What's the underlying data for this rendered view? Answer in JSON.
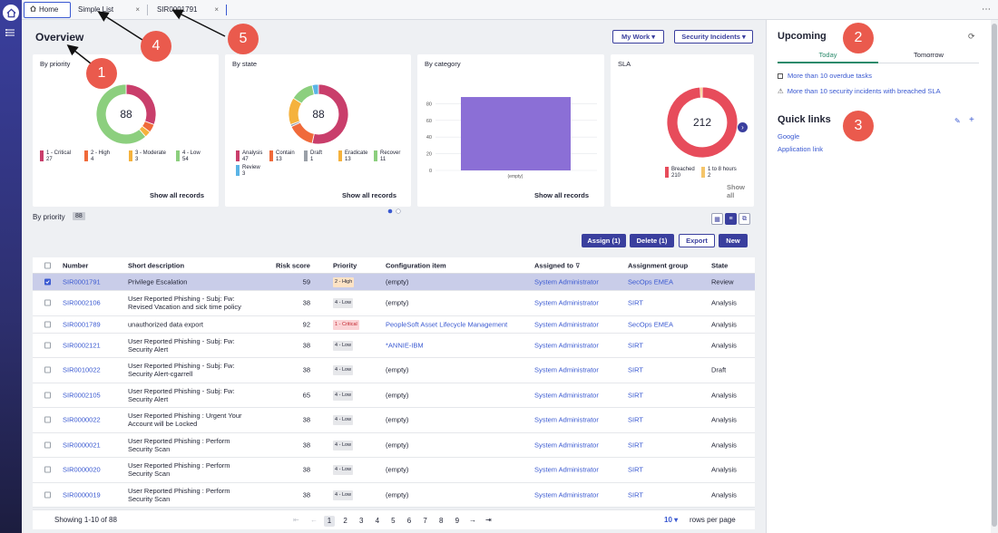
{
  "tabs": [
    {
      "label": "Home",
      "active": true
    },
    {
      "label": "Simple List",
      "close": "×"
    },
    {
      "label": "SIR0001791",
      "close": "×"
    }
  ],
  "page_title": "Overview",
  "buttons": {
    "my_work": "My Work ▾",
    "security_incidents": "Security Incidents ▾"
  },
  "cards": [
    {
      "title": "By priority",
      "center": "88",
      "show_all": "Show all records",
      "legend": [
        {
          "label": "1 - Critical",
          "value": "27",
          "color": "#c93e6b"
        },
        {
          "label": "2 - High",
          "value": "4",
          "color": "#f06a3a"
        },
        {
          "label": "3 - Moderate",
          "value": "3",
          "color": "#f5b23d"
        },
        {
          "label": "4 - Low",
          "value": "54",
          "color": "#8ccf7e"
        }
      ]
    },
    {
      "title": "By state",
      "center": "88",
      "show_all": "Show all records",
      "legend": [
        {
          "label": "Analysis",
          "value": "47",
          "color": "#c93e6b"
        },
        {
          "label": "Contain",
          "value": "13",
          "color": "#f06a3a"
        },
        {
          "label": "Draft",
          "value": "1",
          "color": "#9aa0a8"
        },
        {
          "label": "Eradicate",
          "value": "13",
          "color": "#f5b23d"
        },
        {
          "label": "Recover",
          "value": "11",
          "color": "#8ccf7e"
        },
        {
          "label": "Review",
          "value": "3",
          "color": "#5ab4e6"
        }
      ]
    },
    {
      "title": "By category",
      "show_all": "Show all records"
    },
    {
      "title": "SLA",
      "center": "212",
      "show_all": "Show all",
      "legend": [
        {
          "label": "Breached",
          "value": "210",
          "color": "#e74c5b"
        },
        {
          "label": "1 to 8 hours",
          "value": "2",
          "color": "#f5c56a"
        }
      ]
    }
  ],
  "chart_data": [
    {
      "type": "pie",
      "title": "By priority",
      "categories": [
        "1 - Critical",
        "2 - High",
        "3 - Moderate",
        "4 - Low"
      ],
      "values": [
        27,
        4,
        3,
        54
      ]
    },
    {
      "type": "pie",
      "title": "By state",
      "categories": [
        "Analysis",
        "Contain",
        "Draft",
        "Eradicate",
        "Recover",
        "Review"
      ],
      "values": [
        47,
        13,
        1,
        13,
        11,
        3
      ]
    },
    {
      "type": "bar",
      "title": "By category",
      "categories": [
        "(empty)"
      ],
      "values": [
        88
      ],
      "ylim": [
        0,
        100
      ],
      "yticks": [
        0,
        20,
        40,
        60,
        80
      ]
    },
    {
      "type": "pie",
      "title": "SLA",
      "categories": [
        "Breached",
        "1 to 8 hours"
      ],
      "values": [
        210,
        2
      ]
    }
  ],
  "list": {
    "label": "By priority",
    "count": "88"
  },
  "actions": {
    "assign": "Assign (1)",
    "delete": "Delete (1)",
    "export": "Export",
    "new": "New"
  },
  "columns": {
    "number": "Number",
    "short_description": "Short description",
    "risk_score": "Risk score",
    "priority": "Priority",
    "configuration_item": "Configuration item",
    "assigned_to": "Assigned to",
    "assignment_group": "Assignment group",
    "state": "State"
  },
  "rows": [
    {
      "number": "SIR0001791",
      "desc": "Privilege Escalation",
      "risk": "59",
      "priority": "2 - High",
      "ci": "(empty)",
      "assigned": "System Administrator",
      "group": "SecOps EMEA",
      "state": "Review",
      "selected": true
    },
    {
      "number": "SIR0002106",
      "desc": "User Reported Phishing - Subj: Fw: Revised Vacation and sick time policy",
      "risk": "38",
      "priority": "4 - Low",
      "ci": "(empty)",
      "assigned": "System Administrator",
      "group": "SIRT",
      "state": "Analysis"
    },
    {
      "number": "SIR0001789",
      "desc": "unauthorized data export",
      "risk": "92",
      "priority": "1 - Critical",
      "ci": "PeopleSoft Asset Lifecycle Management",
      "assigned": "System Administrator",
      "group": "SecOps EMEA",
      "state": "Analysis"
    },
    {
      "number": "SIR0002121",
      "desc": "User Reported Phishing - Subj: Fw: Security Alert",
      "risk": "38",
      "priority": "4 - Low",
      "ci": "*ANNIE-IBM",
      "assigned": "System Administrator",
      "group": "SIRT",
      "state": "Analysis"
    },
    {
      "number": "SIR0010022",
      "desc": "User Reported Phishing - Subj: Fw: Security Alert-cgarrell",
      "risk": "38",
      "priority": "4 - Low",
      "ci": "(empty)",
      "assigned": "System Administrator",
      "group": "SIRT",
      "state": "Draft"
    },
    {
      "number": "SIR0002105",
      "desc": "User Reported Phishing - Subj: Fw: Security Alert",
      "risk": "65",
      "priority": "4 - Low",
      "ci": "(empty)",
      "assigned": "System Administrator",
      "group": "SIRT",
      "state": "Analysis"
    },
    {
      "number": "SIR0000022",
      "desc": "User Reported Phishing : Urgent Your Account will be Locked",
      "risk": "38",
      "priority": "4 - Low",
      "ci": "(empty)",
      "assigned": "System Administrator",
      "group": "SIRT",
      "state": "Analysis"
    },
    {
      "number": "SIR0000021",
      "desc": "User Reported Phishing : Perform Security Scan",
      "risk": "38",
      "priority": "4 - Low",
      "ci": "(empty)",
      "assigned": "System Administrator",
      "group": "SIRT",
      "state": "Analysis"
    },
    {
      "number": "SIR0000020",
      "desc": "User Reported Phishing : Perform Security Scan",
      "risk": "38",
      "priority": "4 - Low",
      "ci": "(empty)",
      "assigned": "System Administrator",
      "group": "SIRT",
      "state": "Analysis"
    },
    {
      "number": "SIR0000019",
      "desc": "User Reported Phishing : Perform Security Scan",
      "risk": "38",
      "priority": "4 - Low",
      "ci": "(empty)",
      "assigned": "System Administrator",
      "group": "SIRT",
      "state": "Analysis"
    }
  ],
  "footer": {
    "showing": "Showing 1-10 of 88",
    "pages": [
      "1",
      "2",
      "3",
      "4",
      "5",
      "6",
      "7",
      "8",
      "9"
    ],
    "current_page": "1",
    "rows_per_page": "10 ▾",
    "rows_per_page_label": "rows per page"
  },
  "upcoming": {
    "title": "Upcoming",
    "tab_today": "Today",
    "tab_tomorrow": "Tomorrow",
    "items": [
      "More than 10 overdue tasks",
      "More than 10 security incidents with breached SLA"
    ]
  },
  "quick_links": {
    "title": "Quick links",
    "links": [
      "Google",
      "Application link"
    ]
  },
  "annotations": [
    "1",
    "2",
    "3",
    "4",
    "5"
  ]
}
